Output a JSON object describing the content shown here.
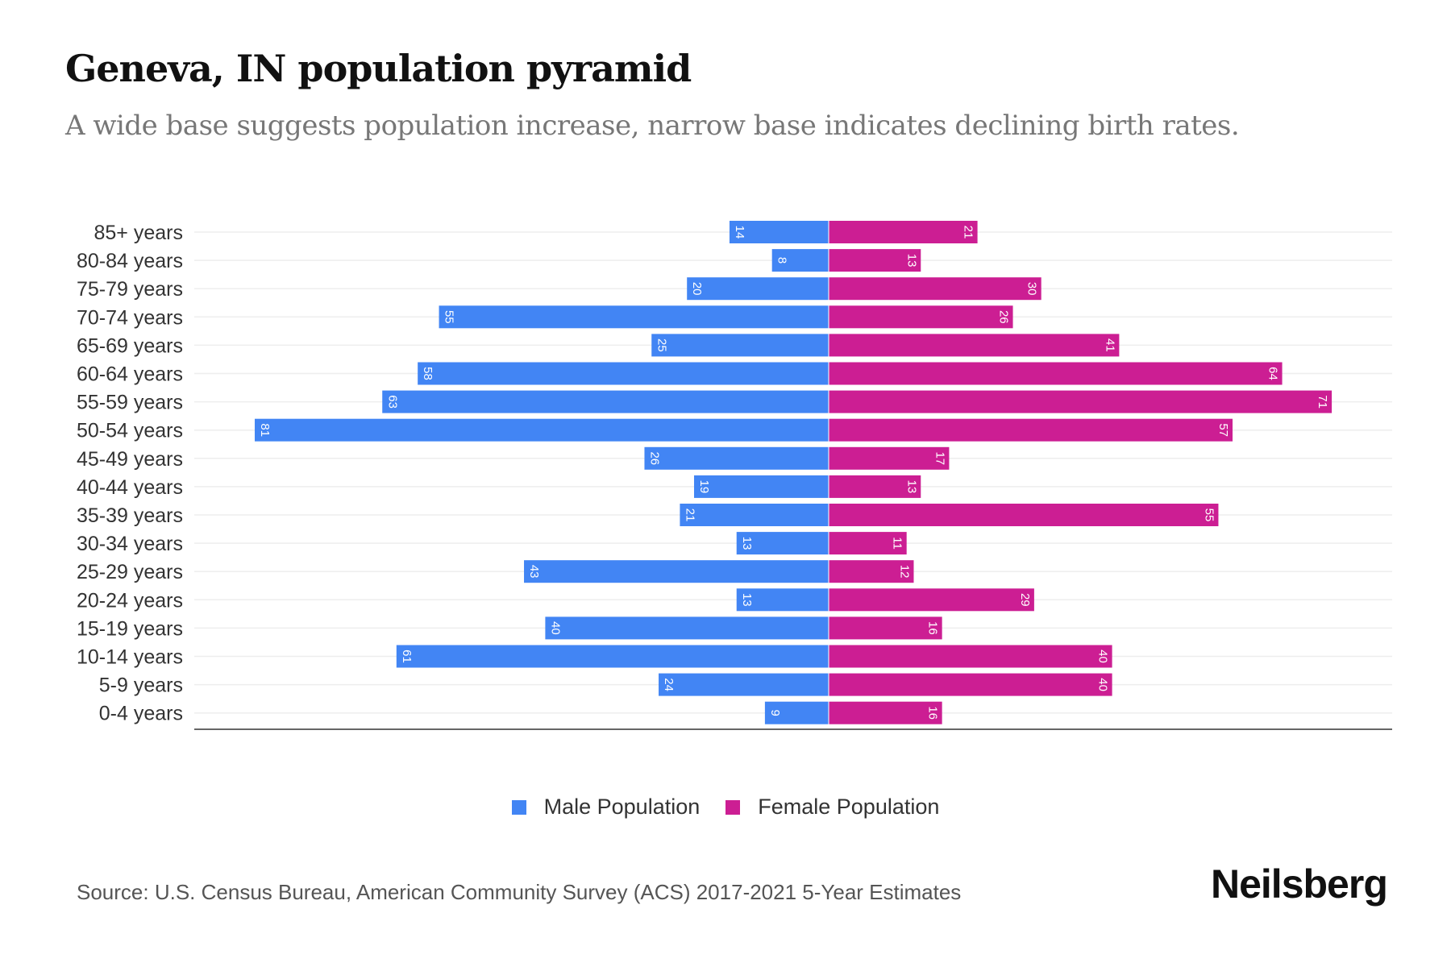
{
  "title": "Geneva, IN population pyramid",
  "subtitle": "A wide base suggests population increase, narrow base indicates declining birth rates.",
  "source": "Source: U.S. Census Bureau, American Community Survey (ACS) 2017-2021 5-Year Estimates",
  "logo": "Neilsberg",
  "colors": {
    "male": "#4285f4",
    "female": "#cc1e93"
  },
  "chart_data": {
    "type": "bar",
    "orientation": "horizontal-pyramid",
    "categories": [
      "85+ years",
      "80-84 years",
      "75-79 years",
      "70-74 years",
      "65-69 years",
      "60-64 years",
      "55-59 years",
      "50-54 years",
      "45-49 years",
      "40-44 years",
      "35-39 years",
      "30-34 years",
      "25-29 years",
      "20-24 years",
      "15-19 years",
      "10-14 years",
      "5-9 years",
      "0-4 years"
    ],
    "series": [
      {
        "name": "Male Population",
        "values": [
          14,
          8,
          20,
          55,
          25,
          58,
          63,
          81,
          26,
          19,
          21,
          13,
          43,
          13,
          40,
          61,
          24,
          9
        ]
      },
      {
        "name": "Female Population",
        "values": [
          21,
          13,
          30,
          26,
          41,
          64,
          71,
          57,
          17,
          13,
          55,
          11,
          12,
          29,
          16,
          40,
          40,
          16
        ]
      }
    ],
    "xlim": [
      -85,
      85
    ],
    "grid": true,
    "legend": "bottom-center"
  }
}
